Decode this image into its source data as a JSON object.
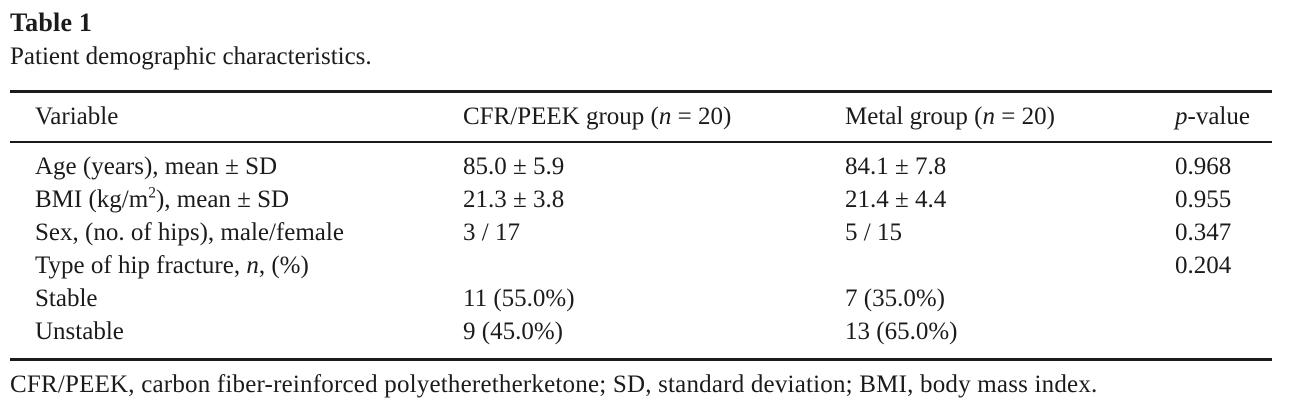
{
  "table": {
    "label": "Table 1",
    "caption": "Patient demographic characteristics.",
    "columns": [
      {
        "name": "variable",
        "segments": [
          {
            "t": "Variable"
          }
        ]
      },
      {
        "name": "cfr-peek-group",
        "segments": [
          {
            "t": "CFR/PEEK group ("
          },
          {
            "t": "n",
            "i": true
          },
          {
            "t": " = 20)"
          }
        ]
      },
      {
        "name": "metal-group",
        "segments": [
          {
            "t": "Metal group ("
          },
          {
            "t": "n",
            "i": true
          },
          {
            "t": " = 20)"
          }
        ]
      },
      {
        "name": "p-value",
        "segments": [
          {
            "t": "p",
            "i": true
          },
          {
            "t": "-value"
          }
        ]
      }
    ],
    "rows": [
      {
        "cells": [
          [
            {
              "t": "Age (years), mean ± SD"
            }
          ],
          [
            {
              "t": "85.0 ± 5.9"
            }
          ],
          [
            {
              "t": "84.1 ± 7.8"
            }
          ],
          [
            {
              "t": "0.968"
            }
          ]
        ]
      },
      {
        "cells": [
          [
            {
              "t": "BMI (kg/m"
            },
            {
              "t": "2",
              "sup": true
            },
            {
              "t": "), mean ± SD"
            }
          ],
          [
            {
              "t": "21.3 ± 3.8"
            }
          ],
          [
            {
              "t": "21.4 ± 4.4"
            }
          ],
          [
            {
              "t": "0.955"
            }
          ]
        ]
      },
      {
        "cells": [
          [
            {
              "t": "Sex, (no. of hips), male/female"
            }
          ],
          [
            {
              "t": "3 / 17"
            }
          ],
          [
            {
              "t": "5 / 15"
            }
          ],
          [
            {
              "t": "0.347"
            }
          ]
        ]
      },
      {
        "cells": [
          [
            {
              "t": "Type of hip fracture, "
            },
            {
              "t": "n",
              "i": true
            },
            {
              "t": ", (%)"
            }
          ],
          [],
          [],
          [
            {
              "t": "0.204"
            }
          ]
        ]
      },
      {
        "cells": [
          [
            {
              "t": "Stable"
            }
          ],
          [
            {
              "t": "11 (55.0%)"
            }
          ],
          [
            {
              "t": "7 (35.0%)"
            }
          ],
          []
        ]
      },
      {
        "cells": [
          [
            {
              "t": "Unstable"
            }
          ],
          [
            {
              "t": "9 (45.0%)"
            }
          ],
          [
            {
              "t": "13 (65.0%)"
            }
          ],
          []
        ]
      }
    ],
    "footnote": "CFR/PEEK, carbon fiber-reinforced polyetheretherketone; SD, standard deviation; BMI, body mass index."
  }
}
